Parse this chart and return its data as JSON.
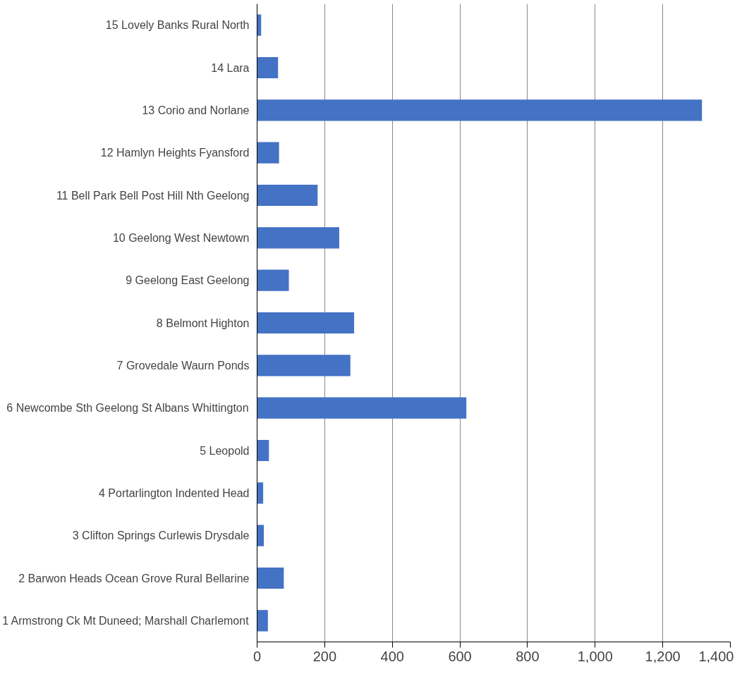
{
  "chart_data": {
    "type": "bar",
    "orientation": "horizontal",
    "categories": [
      "15 Lovely Banks Rural North",
      "14 Lara",
      "13 Corio and Norlane",
      "12 Hamlyn Heights Fyansford",
      "11 Bell Park Bell Post Hill Nth Geelong",
      "10 Geelong West Newtown",
      "9 Geelong East Geelong",
      "8 Belmont Highton",
      "7 Grovedale Waurn Ponds",
      "6 Newcombe Sth Geelong St Albans Whittington",
      "5 Leopold",
      "4 Portarlington Indented Head",
      "3 Clifton Springs Curlewis Drysdale",
      "2 Barwon Heads Ocean Grove Rural Bellarine",
      "1 Armstrong Ck Mt Duneed; Marshall Charlemont"
    ],
    "values": [
      12,
      62,
      1316,
      65,
      179,
      243,
      94,
      287,
      276,
      619,
      35,
      18,
      20,
      79,
      32
    ],
    "color": "#4472c4",
    "xlim": [
      0,
      1400
    ],
    "xticks": [
      0,
      200,
      400,
      600,
      800,
      {
        "value": 1000,
        "label": "1,000"
      },
      {
        "value": 1200,
        "label": "1,200"
      },
      {
        "value": 1400,
        "label": "1,400"
      }
    ],
    "grid": "x"
  }
}
